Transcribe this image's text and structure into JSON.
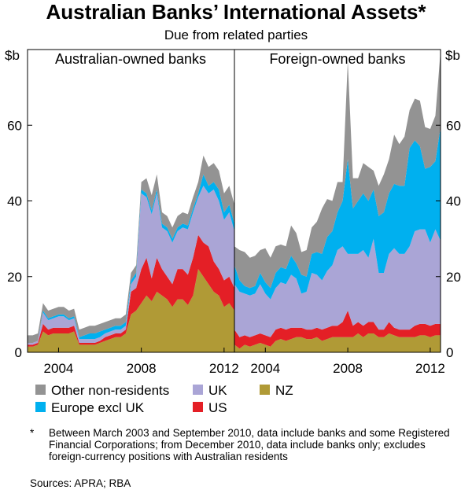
{
  "chart_data": {
    "type": "area",
    "stacked": true,
    "title": "Australian Banks’ International Assets*",
    "subtitle": "Due from related parties",
    "y_unit_label": "$b",
    "ylim": [
      0,
      80
    ],
    "yticks": [
      0,
      20,
      40,
      60
    ],
    "legend_labels": {
      "Other": "Other non-residents",
      "UK": "UK",
      "NZ": "NZ",
      "EU": "Europe excl UK",
      "US": "US"
    },
    "colors": {
      "NZ": "#b09a36",
      "US": "#e41f26",
      "UK": "#aaa5d6",
      "EU": "#00b0ef",
      "Other": "#939393"
    },
    "stack_order": [
      "NZ",
      "US",
      "UK",
      "EU",
      "Other"
    ],
    "legend_order": [
      "Other",
      "UK",
      "NZ",
      "EU",
      "US"
    ],
    "panels": [
      {
        "name": "Australian-owned banks",
        "x_start": 2002.5,
        "x_end": 2012.5,
        "xticks": [
          2004,
          2008,
          2012
        ],
        "x": [
          2002.5,
          2002.75,
          2003.0,
          2003.25,
          2003.5,
          2003.75,
          2004.0,
          2004.25,
          2004.5,
          2004.75,
          2005.0,
          2005.25,
          2005.5,
          2005.75,
          2006.0,
          2006.25,
          2006.5,
          2006.75,
          2007.0,
          2007.25,
          2007.5,
          2007.75,
          2008.0,
          2008.25,
          2008.5,
          2008.75,
          2009.0,
          2009.25,
          2009.5,
          2009.75,
          2010.0,
          2010.25,
          2010.5,
          2010.75,
          2011.0,
          2011.25,
          2011.5,
          2011.75,
          2012.0,
          2012.25,
          2012.5
        ],
        "series": {
          "NZ": [
            1.5,
            1.5,
            2,
            5.5,
            4.5,
            5,
            5,
            5,
            5,
            5.5,
            2,
            2,
            2,
            2,
            2.5,
            3,
            3.5,
            4,
            4,
            5,
            10,
            11,
            13,
            15,
            13.5,
            16,
            15,
            14,
            12,
            14,
            14,
            12.5,
            15,
            22,
            20,
            18,
            16,
            15,
            12,
            13,
            11
          ],
          "US": [
            0.5,
            0.5,
            0.5,
            2,
            1.5,
            1.5,
            1.5,
            1.5,
            1.5,
            1.5,
            0.5,
            0.5,
            0.5,
            0.5,
            0.5,
            1,
            1,
            1,
            1,
            1,
            6,
            6,
            9,
            10,
            6,
            9,
            7,
            6,
            6,
            8,
            8,
            8,
            10,
            9,
            9,
            10,
            8,
            7,
            7,
            7,
            6
          ],
          "UK": [
            0.5,
            0.5,
            0.5,
            3,
            2.5,
            2.5,
            3,
            3,
            2,
            2,
            1,
            1,
            1,
            1,
            1,
            1,
            1,
            1,
            1,
            1,
            2,
            3,
            20,
            16,
            17,
            17,
            11,
            12,
            11,
            10,
            11,
            12,
            12,
            10,
            15,
            14,
            19,
            18,
            16,
            17,
            15
          ],
          "EU": [
            0,
            0,
            0,
            0.5,
            0.5,
            0.5,
            0.5,
            0.5,
            0.5,
            0.5,
            0.5,
            1,
            1.5,
            1.5,
            1.5,
            1,
            1,
            1,
            1,
            1,
            1,
            1,
            1,
            1,
            1,
            1,
            1,
            1,
            1,
            1,
            1,
            1,
            1,
            1,
            3,
            2,
            2,
            3,
            2,
            2,
            2
          ],
          "Other": [
            2,
            2,
            2,
            2,
            2,
            2,
            2,
            2,
            2,
            2,
            2,
            2,
            2,
            2,
            2,
            2,
            2,
            2,
            2,
            2,
            2,
            2,
            2,
            4,
            4,
            4,
            3,
            3,
            3,
            3,
            3,
            3,
            3,
            3,
            5,
            5,
            5,
            5,
            5,
            5,
            5
          ]
        }
      },
      {
        "name": "Foreign-owned banks",
        "x_start": 2002.5,
        "x_end": 2012.5,
        "xticks": [
          2004,
          2008,
          2012
        ],
        "x": [
          2002.5,
          2002.75,
          2003.0,
          2003.25,
          2003.5,
          2003.75,
          2004.0,
          2004.25,
          2004.5,
          2004.75,
          2005.0,
          2005.25,
          2005.5,
          2005.75,
          2006.0,
          2006.25,
          2006.5,
          2006.75,
          2007.0,
          2007.25,
          2007.5,
          2007.75,
          2008.0,
          2008.25,
          2008.5,
          2008.75,
          2009.0,
          2009.25,
          2009.5,
          2009.75,
          2010.0,
          2010.25,
          2010.5,
          2010.75,
          2011.0,
          2011.25,
          2011.5,
          2011.75,
          2012.0,
          2012.25,
          2012.5
        ],
        "series": {
          "NZ": [
            2,
            1,
            2,
            1.5,
            2,
            2.5,
            2,
            1.5,
            3,
            3.5,
            3,
            3.5,
            4,
            4,
            3.5,
            3.5,
            4,
            3,
            3.5,
            4,
            4,
            4,
            4,
            4,
            5,
            4,
            5,
            5,
            4,
            4,
            5,
            4.5,
            4,
            4,
            4,
            4,
            4.5,
            4.5,
            4,
            4.5,
            4.5
          ],
          "US": [
            4,
            3,
            2.5,
            2.5,
            2.5,
            2.5,
            2.5,
            2.5,
            3,
            3,
            3,
            3,
            2.5,
            2.5,
            2.5,
            2.5,
            2.5,
            3,
            3,
            3,
            3,
            4,
            7,
            3,
            3,
            3,
            3,
            3,
            2,
            2,
            3,
            2,
            2,
            2,
            2,
            3,
            3,
            3,
            3,
            3,
            3
          ],
          "UK": [
            12,
            12,
            11,
            11,
            11,
            13,
            11,
            10,
            11,
            12,
            12,
            14,
            13,
            9,
            10,
            15,
            14,
            13,
            15,
            16,
            20,
            20,
            15,
            19,
            18,
            20,
            17,
            22,
            15,
            15,
            18,
            21,
            20,
            20,
            22,
            25,
            25,
            25,
            22,
            25,
            22
          ],
          "EU": [
            5,
            3,
            2,
            2,
            2,
            3,
            3,
            3,
            4,
            4,
            4,
            5,
            4,
            5,
            4,
            5,
            6,
            7,
            9,
            9,
            10,
            12,
            25,
            12,
            14,
            15,
            15,
            13,
            15,
            16,
            16,
            17,
            18,
            18,
            26,
            24,
            22,
            16,
            20,
            18,
            30
          ],
          "Other": [
            5,
            8,
            9,
            8,
            8,
            6,
            9,
            8,
            7,
            6,
            6,
            8,
            8,
            6,
            7,
            7,
            8,
            12,
            10,
            8,
            8,
            5,
            26,
            8,
            6,
            8,
            9,
            5,
            8,
            10,
            9,
            13,
            11,
            13,
            10,
            11,
            12,
            11,
            10,
            12,
            20
          ]
        }
      }
    ]
  },
  "footnote": {
    "marker": "*",
    "text": "Between March 2003 and September 2010, data include banks and some Registered Financial Corporations; from December 2010, data include banks only; excludes foreign-currency positions with Australian residents"
  },
  "sources": "Sources: APRA; RBA"
}
